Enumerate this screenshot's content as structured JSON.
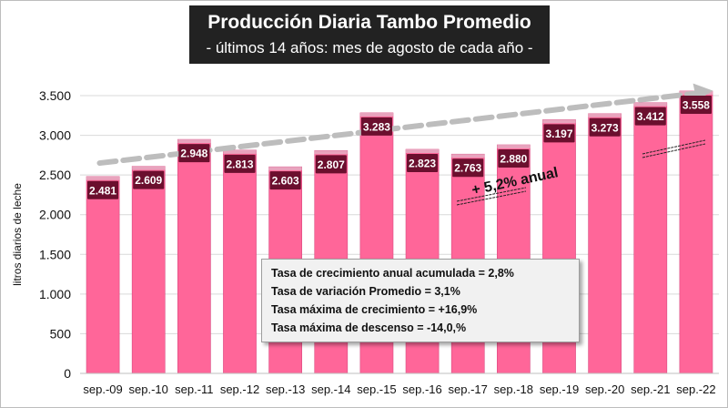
{
  "header": {
    "title": "Producción Diaria Tambo Promedio",
    "subtitle": "- últimos 14 años: mes de agosto de cada año -"
  },
  "stats": [
    "Tasa de crecimiento anual acumulada = 2,8%",
    "Tasa de variación Promedio = 3,1%",
    "Tasa máxima de crecimiento = +16,9%",
    "Tasa máxima de descenso = -14,0,%"
  ],
  "colors": {
    "bar": "#ff6699",
    "bar_top": "#e8a3bd",
    "label_bg": "#6b0f2e",
    "trend": "#bdbdbd",
    "grid": "#d9d9d9"
  },
  "chart_data": {
    "type": "bar",
    "categories": [
      "sep.-09",
      "sep.-10",
      "sep.-11",
      "sep.-12",
      "sep.-13",
      "sep.-14",
      "sep.-15",
      "sep.-16",
      "sep.-17",
      "sep.-18",
      "sep.-19",
      "sep.-20",
      "sep.-21",
      "sep.-22"
    ],
    "values": [
      2481,
      2609,
      2948,
      2813,
      2603,
      2807,
      3283,
      2823,
      2763,
      2880,
      3197,
      3273,
      3412,
      3558
    ],
    "data_labels": [
      "2.481",
      "2.609",
      "2.948",
      "2.813",
      "2.603",
      "2.807",
      "3.283",
      "2.823",
      "2.763",
      "2.880",
      "3.197",
      "3.273",
      "3.412",
      "3.558"
    ],
    "title": "Producción Diaria Tambo Promedio",
    "subtitle": "- últimos 14 años: mes de agosto de cada año -",
    "xlabel": "",
    "ylabel": "litros diarios de leche",
    "ylim": [
      0,
      3500
    ],
    "yticks": [
      0,
      500,
      1000,
      1500,
      2000,
      2500,
      3000,
      3500
    ],
    "ytick_labels": [
      "0",
      "500",
      "1.000",
      "1.500",
      "2.000",
      "2.500",
      "3.000",
      "3.500"
    ],
    "grid": true,
    "trendline": {
      "style": "dashed",
      "start": 2650,
      "end": 3550
    },
    "annotation": "+ 5,2% anual"
  }
}
